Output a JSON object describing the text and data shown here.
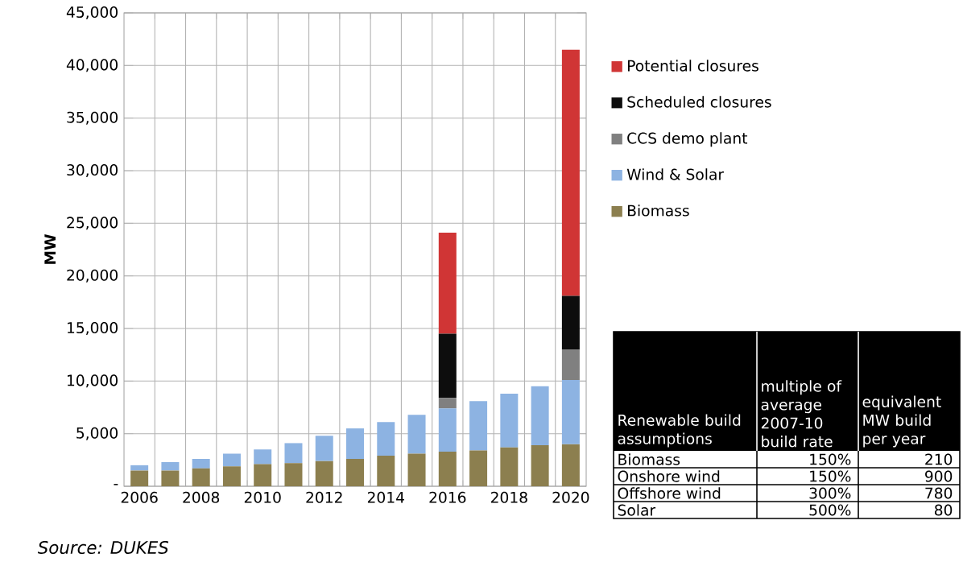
{
  "chart_data": {
    "type": "bar",
    "stacked": true,
    "ylabel": "MW",
    "categories": [
      "2006",
      null,
      "2008",
      null,
      "2010",
      null,
      "2012",
      null,
      "2014",
      null,
      "2016",
      null,
      "2018",
      null,
      "2020"
    ],
    "series": [
      {
        "name": "Biomass",
        "color": "#8c7f4f",
        "values": [
          1500,
          1500,
          1700,
          1900,
          2100,
          2200,
          2400,
          2600,
          2900,
          3100,
          3300,
          3400,
          3700,
          3900,
          4000
        ]
      },
      {
        "name": "Wind & Solar",
        "color": "#8db3e2",
        "values": [
          500,
          800,
          900,
          1200,
          1400,
          1900,
          2400,
          2900,
          3200,
          3700,
          4100,
          4700,
          5100,
          5600,
          6100
        ]
      },
      {
        "name": "CCS demo plant",
        "color": "#808080",
        "values": [
          null,
          null,
          null,
          null,
          null,
          null,
          null,
          null,
          null,
          null,
          1000,
          null,
          null,
          null,
          2900
        ]
      },
      {
        "name": "Scheduled closures",
        "color": "#0d0d0d",
        "values": [
          null,
          null,
          null,
          null,
          null,
          null,
          null,
          null,
          null,
          null,
          6100,
          null,
          null,
          null,
          5100
        ]
      },
      {
        "name": "Potential closures",
        "color": "#d03535",
        "values": [
          null,
          null,
          null,
          null,
          null,
          null,
          null,
          null,
          null,
          null,
          9600,
          null,
          null,
          null,
          23400
        ]
      }
    ],
    "ylim": [
      0,
      45000
    ],
    "yticks": [
      {
        "value": 0,
        "label": "-"
      },
      {
        "value": 5000,
        "label": "5,000"
      },
      {
        "value": 10000,
        "label": "10,000"
      },
      {
        "value": 15000,
        "label": "15,000"
      },
      {
        "value": 20000,
        "label": "20,000"
      },
      {
        "value": 25000,
        "label": "25,000"
      },
      {
        "value": 30000,
        "label": "30,000"
      },
      {
        "value": 35000,
        "label": "35,000"
      },
      {
        "value": 40000,
        "label": "40,000"
      },
      {
        "value": 45000,
        "label": "45,000"
      }
    ],
    "grid": true,
    "legend": "right",
    "annotations": [
      "Source: *DUKES*",
      "Renewable build assumptions",
      "multiple of average 2007-10 build rate",
      "equivalent MW build per year",
      "Biomass",
      "150%",
      "210",
      "Onshore wind",
      "150%",
      "900",
      "Offshore wind",
      "300%",
      "780",
      "Solar",
      "500%",
      "80"
    ]
  }
}
